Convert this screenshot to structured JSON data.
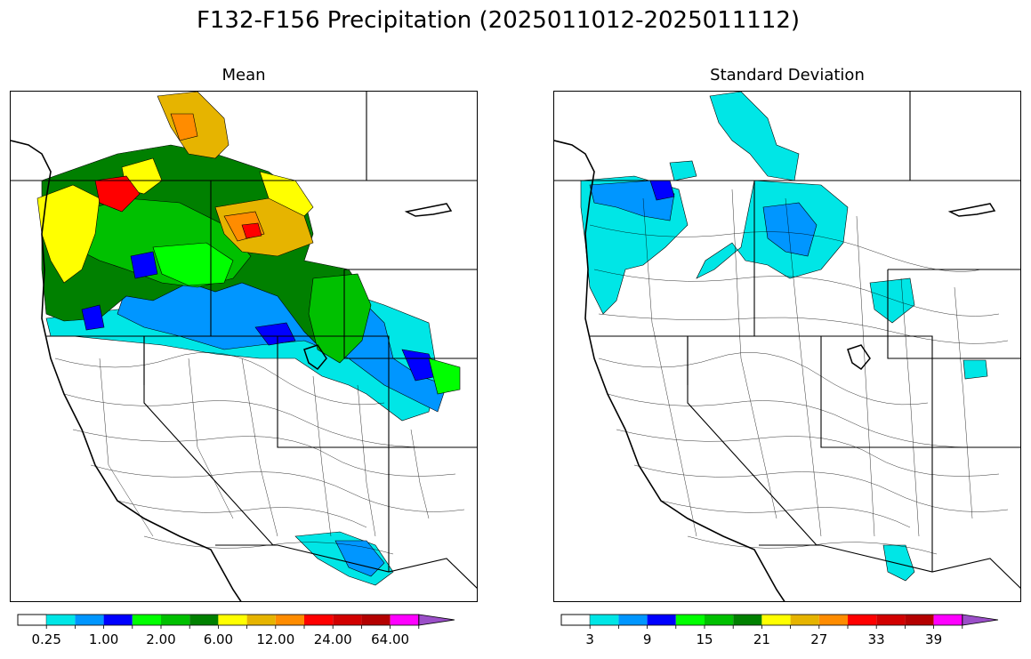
{
  "title": "F132-F156 Precipitation (2025011012-2025011112)",
  "panels": [
    {
      "title": "Mean",
      "colorbar": {
        "colors": [
          "#ffffff",
          "#00e6e6",
          "#0096ff",
          "#0000ff",
          "#00ff00",
          "#00c000",
          "#008000",
          "#ffff00",
          "#e6b400",
          "#ff8c00",
          "#ff0000",
          "#d20000",
          "#b40000",
          "#ff00ff",
          "#9b4fc8"
        ],
        "tick_labels": [
          "0.25",
          "1.00",
          "2.00",
          "6.00",
          "12.00",
          "24.00",
          "64.00"
        ],
        "extend": "max"
      }
    },
    {
      "title": "Standard Deviation",
      "colorbar": {
        "colors": [
          "#ffffff",
          "#00e6e6",
          "#0096ff",
          "#0000ff",
          "#00ff00",
          "#00c000",
          "#008000",
          "#ffff00",
          "#e6b400",
          "#ff8c00",
          "#ff0000",
          "#d20000",
          "#b40000",
          "#ff00ff",
          "#9b4fc8"
        ],
        "tick_labels": [
          "3",
          "9",
          "15",
          "21",
          "27",
          "33",
          "39"
        ],
        "extend": "max"
      }
    }
  ]
}
